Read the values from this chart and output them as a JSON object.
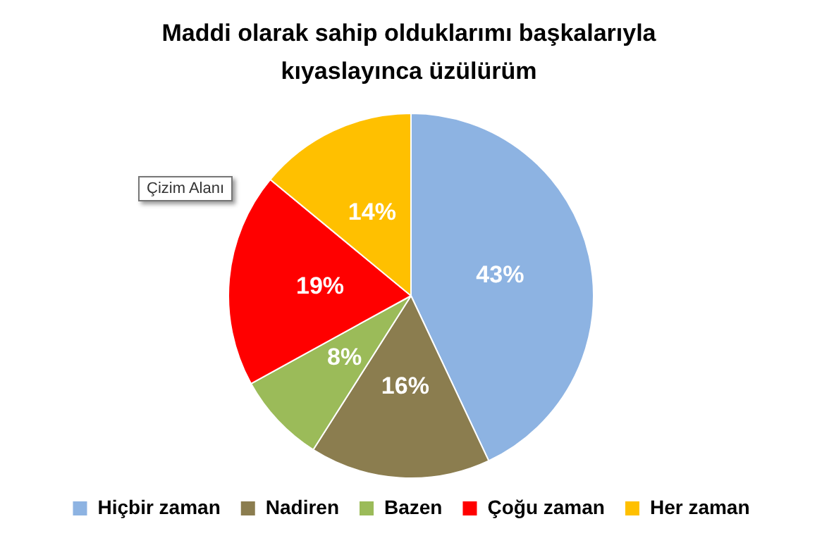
{
  "chart_data": {
    "type": "pie",
    "title": "Maddi olarak sahip olduklarımı başkalarıyla kıyaslayınca üzülürüm",
    "categories": [
      "Hiçbir zaman",
      "Nadiren",
      "Bazen",
      "Çoğu zaman",
      "Her zaman"
    ],
    "values": [
      43,
      16,
      8,
      19,
      14
    ],
    "colors": [
      "#8db3e2",
      "#8b7d4f",
      "#9bbb59",
      "#ff0000",
      "#ffc000"
    ],
    "value_labels": [
      "43%",
      "16%",
      "8%",
      "19%",
      "14%"
    ],
    "legend": "bottom",
    "annotations": [
      "Çizim Alanı"
    ]
  }
}
